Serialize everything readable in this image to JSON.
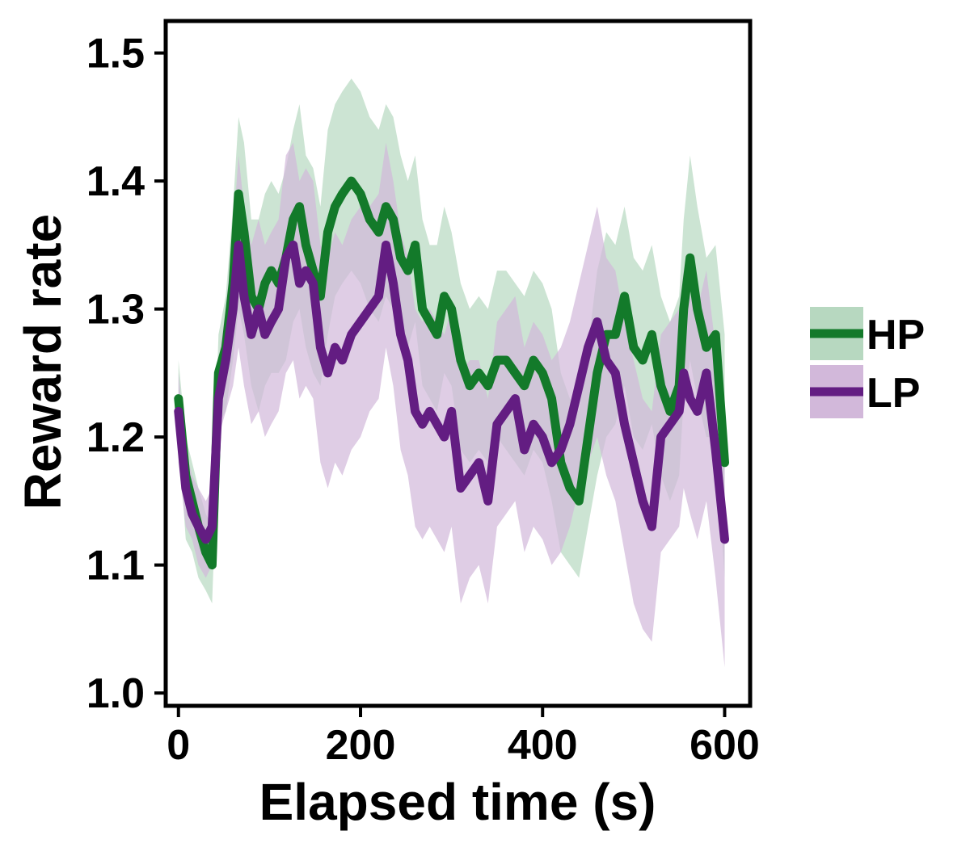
{
  "chart_data": {
    "type": "line",
    "title": "",
    "xlabel": "Elapsed time (s)",
    "ylabel": "Reward rate",
    "xlim": [
      -14,
      628
    ],
    "ylim": [
      0.99,
      1.525
    ],
    "xticks": [
      0,
      200,
      400,
      600
    ],
    "yticks": [
      1.0,
      1.1,
      1.2,
      1.3,
      1.4,
      1.5
    ],
    "xtick_labels": [
      "0",
      "200",
      "400",
      "600"
    ],
    "ytick_labels": [
      "1.0",
      "1.1",
      "1.2",
      "1.3",
      "1.4",
      "1.5"
    ],
    "grid": false,
    "legend_position": "right",
    "series": [
      {
        "name": "HP",
        "color": "#137a2a",
        "band_color": "#b7d8c0",
        "x": [
          0,
          8,
          15,
          22,
          30,
          37,
          44,
          52,
          60,
          66,
          72,
          80,
          88,
          95,
          102,
          110,
          118,
          126,
          133,
          140,
          148,
          156,
          164,
          172,
          180,
          190,
          200,
          210,
          220,
          228,
          236,
          244,
          252,
          260,
          268,
          276,
          284,
          292,
          300,
          310,
          320,
          330,
          340,
          350,
          360,
          370,
          380,
          390,
          400,
          410,
          420,
          430,
          440,
          450,
          460,
          470,
          480,
          490,
          500,
          510,
          520,
          530,
          540,
          550,
          555,
          562,
          570,
          580,
          590,
          600
        ],
        "y": [
          1.23,
          1.17,
          1.15,
          1.13,
          1.11,
          1.1,
          1.25,
          1.27,
          1.32,
          1.39,
          1.36,
          1.31,
          1.3,
          1.32,
          1.33,
          1.32,
          1.34,
          1.37,
          1.38,
          1.35,
          1.33,
          1.31,
          1.36,
          1.38,
          1.39,
          1.4,
          1.39,
          1.37,
          1.36,
          1.38,
          1.37,
          1.34,
          1.33,
          1.35,
          1.3,
          1.29,
          1.28,
          1.31,
          1.3,
          1.26,
          1.24,
          1.25,
          1.24,
          1.26,
          1.26,
          1.25,
          1.24,
          1.26,
          1.25,
          1.23,
          1.18,
          1.16,
          1.15,
          1.2,
          1.25,
          1.28,
          1.28,
          1.31,
          1.27,
          1.26,
          1.28,
          1.24,
          1.22,
          1.24,
          1.3,
          1.34,
          1.3,
          1.27,
          1.28,
          1.18
        ],
        "lower": [
          1.2,
          1.12,
          1.11,
          1.09,
          1.08,
          1.07,
          1.21,
          1.22,
          1.26,
          1.3,
          1.28,
          1.24,
          1.22,
          1.24,
          1.25,
          1.25,
          1.26,
          1.29,
          1.3,
          1.27,
          1.25,
          1.24,
          1.28,
          1.31,
          1.32,
          1.33,
          1.32,
          1.3,
          1.29,
          1.31,
          1.3,
          1.27,
          1.27,
          1.29,
          1.24,
          1.23,
          1.22,
          1.25,
          1.24,
          1.19,
          1.18,
          1.19,
          1.18,
          1.2,
          1.19,
          1.18,
          1.17,
          1.19,
          1.18,
          1.15,
          1.11,
          1.1,
          1.09,
          1.13,
          1.17,
          1.2,
          1.21,
          1.24,
          1.2,
          1.19,
          1.21,
          1.17,
          1.15,
          1.17,
          1.23,
          1.26,
          1.23,
          1.2,
          1.2,
          1.09
        ],
        "upper": [
          1.26,
          1.2,
          1.18,
          1.16,
          1.14,
          1.13,
          1.28,
          1.31,
          1.38,
          1.45,
          1.43,
          1.37,
          1.37,
          1.39,
          1.4,
          1.39,
          1.41,
          1.44,
          1.46,
          1.42,
          1.41,
          1.38,
          1.44,
          1.46,
          1.47,
          1.48,
          1.47,
          1.45,
          1.44,
          1.46,
          1.45,
          1.42,
          1.4,
          1.42,
          1.37,
          1.35,
          1.35,
          1.38,
          1.36,
          1.32,
          1.3,
          1.31,
          1.3,
          1.33,
          1.33,
          1.32,
          1.31,
          1.33,
          1.32,
          1.3,
          1.25,
          1.23,
          1.22,
          1.27,
          1.33,
          1.36,
          1.35,
          1.38,
          1.34,
          1.33,
          1.35,
          1.31,
          1.29,
          1.31,
          1.37,
          1.42,
          1.38,
          1.34,
          1.35,
          1.28
        ]
      },
      {
        "name": "LP",
        "color": "#631d82",
        "band_color": "#d2b8da",
        "x": [
          0,
          8,
          15,
          22,
          30,
          37,
          44,
          52,
          60,
          66,
          72,
          80,
          88,
          95,
          102,
          110,
          118,
          126,
          133,
          140,
          148,
          156,
          164,
          172,
          180,
          190,
          200,
          210,
          220,
          228,
          236,
          244,
          252,
          260,
          268,
          276,
          284,
          292,
          300,
          310,
          320,
          330,
          340,
          350,
          360,
          370,
          380,
          390,
          400,
          410,
          420,
          430,
          440,
          450,
          460,
          470,
          480,
          490,
          500,
          510,
          520,
          530,
          540,
          550,
          555,
          562,
          570,
          580,
          590,
          600
        ],
        "y": [
          1.22,
          1.16,
          1.14,
          1.13,
          1.12,
          1.13,
          1.23,
          1.26,
          1.3,
          1.35,
          1.31,
          1.28,
          1.3,
          1.28,
          1.29,
          1.3,
          1.34,
          1.35,
          1.32,
          1.33,
          1.32,
          1.27,
          1.25,
          1.27,
          1.26,
          1.28,
          1.29,
          1.3,
          1.31,
          1.35,
          1.32,
          1.28,
          1.26,
          1.22,
          1.21,
          1.22,
          1.21,
          1.2,
          1.22,
          1.16,
          1.17,
          1.18,
          1.15,
          1.21,
          1.22,
          1.23,
          1.19,
          1.21,
          1.2,
          1.18,
          1.19,
          1.21,
          1.24,
          1.27,
          1.29,
          1.26,
          1.25,
          1.21,
          1.18,
          1.15,
          1.13,
          1.2,
          1.21,
          1.22,
          1.25,
          1.23,
          1.22,
          1.25,
          1.19,
          1.12
        ],
        "lower": [
          1.18,
          1.13,
          1.12,
          1.1,
          1.09,
          1.1,
          1.2,
          1.22,
          1.24,
          1.27,
          1.24,
          1.21,
          1.22,
          1.2,
          1.21,
          1.22,
          1.25,
          1.26,
          1.23,
          1.24,
          1.23,
          1.18,
          1.16,
          1.18,
          1.17,
          1.19,
          1.2,
          1.22,
          1.23,
          1.27,
          1.24,
          1.19,
          1.17,
          1.13,
          1.12,
          1.13,
          1.12,
          1.11,
          1.13,
          1.07,
          1.09,
          1.1,
          1.07,
          1.13,
          1.14,
          1.15,
          1.11,
          1.13,
          1.12,
          1.1,
          1.11,
          1.13,
          1.16,
          1.18,
          1.2,
          1.17,
          1.15,
          1.11,
          1.07,
          1.05,
          1.04,
          1.11,
          1.12,
          1.13,
          1.16,
          1.14,
          1.12,
          1.15,
          1.09,
          1.02
        ],
        "upper": [
          1.25,
          1.19,
          1.17,
          1.16,
          1.15,
          1.16,
          1.26,
          1.3,
          1.36,
          1.42,
          1.38,
          1.35,
          1.37,
          1.35,
          1.36,
          1.37,
          1.42,
          1.43,
          1.4,
          1.41,
          1.4,
          1.35,
          1.34,
          1.36,
          1.35,
          1.37,
          1.38,
          1.38,
          1.39,
          1.43,
          1.4,
          1.36,
          1.34,
          1.3,
          1.29,
          1.3,
          1.29,
          1.28,
          1.3,
          1.25,
          1.26,
          1.26,
          1.23,
          1.29,
          1.3,
          1.31,
          1.27,
          1.29,
          1.28,
          1.26,
          1.27,
          1.29,
          1.32,
          1.35,
          1.38,
          1.34,
          1.33,
          1.29,
          1.26,
          1.23,
          1.22,
          1.28,
          1.29,
          1.3,
          1.33,
          1.31,
          1.3,
          1.33,
          1.27,
          1.2
        ]
      }
    ]
  }
}
